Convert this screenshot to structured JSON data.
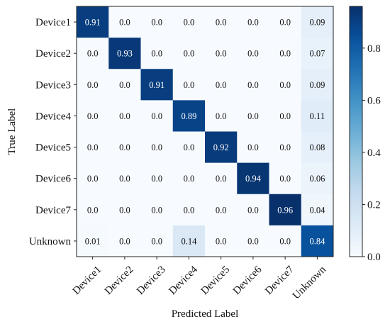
{
  "chart_data": {
    "type": "heatmap",
    "title": "",
    "xlabel": "Predicted Label",
    "ylabel": "True Label",
    "x_categories": [
      "Device1",
      "Device2",
      "Device3",
      "Device4",
      "Device5",
      "Device6",
      "Device7",
      "Unknown"
    ],
    "y_categories": [
      "Device1",
      "Device2",
      "Device3",
      "Device4",
      "Device5",
      "Device6",
      "Device7",
      "Unknown"
    ],
    "cell_labels": [
      [
        "0.91",
        "0.0",
        "0.0",
        "0.0",
        "0.0",
        "0.0",
        "0.0",
        "0.09"
      ],
      [
        "0.0",
        "0.93",
        "0.0",
        "0.0",
        "0.0",
        "0.0",
        "0.0",
        "0.07"
      ],
      [
        "0.0",
        "0.0",
        "0.91",
        "0.0",
        "0.0",
        "0.0",
        "0.0",
        "0.09"
      ],
      [
        "0.0",
        "0.0",
        "0.0",
        "0.89",
        "0.0",
        "0.0",
        "0.0",
        "0.11"
      ],
      [
        "0.0",
        "0.0",
        "0.0",
        "0.0",
        "0.92",
        "0.0",
        "0.0",
        "0.08"
      ],
      [
        "0.0",
        "0.0",
        "0.0",
        "0.0",
        "0.0",
        "0.94",
        "0.0",
        "0.06"
      ],
      [
        "0.0",
        "0.0",
        "0.0",
        "0.0",
        "0.0",
        "0.0",
        "0.96",
        "0.04"
      ],
      [
        "0.01",
        "0.0",
        "0.0",
        "0.14",
        "0.0",
        "0.0",
        "0.0",
        "0.84"
      ]
    ],
    "colorbar": {
      "min": 0.0,
      "max": 0.96,
      "ticks": [
        "0.0",
        "0.2",
        "0.4",
        "0.6",
        "0.8"
      ],
      "colormap": "Blues"
    }
  }
}
